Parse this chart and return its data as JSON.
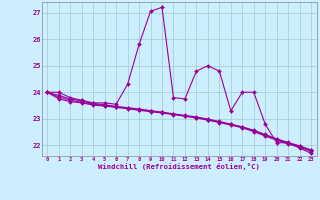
{
  "xlabel": "Windchill (Refroidissement éolien,°C)",
  "bg_color": "#cceeff",
  "line_color": "#990099",
  "grid_color": "#99cccc",
  "x_min": -0.5,
  "x_max": 23.5,
  "y_min": 21.6,
  "y_max": 27.4,
  "yticks": [
    22,
    23,
    24,
    25,
    26,
    27
  ],
  "xticks": [
    0,
    1,
    2,
    3,
    4,
    5,
    6,
    7,
    8,
    9,
    10,
    11,
    12,
    13,
    14,
    15,
    16,
    17,
    18,
    19,
    20,
    21,
    22,
    23
  ],
  "series1_x": [
    0,
    1,
    2,
    3,
    4,
    5,
    6,
    7,
    8,
    9,
    10,
    11,
    12,
    13,
    14,
    15,
    16,
    17,
    18,
    19,
    20,
    21,
    22,
    23
  ],
  "series1_y": [
    24.0,
    24.0,
    23.8,
    23.7,
    23.6,
    23.6,
    23.55,
    24.3,
    25.8,
    27.05,
    27.2,
    23.8,
    23.75,
    24.8,
    25.0,
    24.8,
    23.3,
    24.0,
    24.0,
    22.8,
    22.1,
    22.1,
    21.9,
    21.7
  ],
  "series2_x": [
    0,
    1,
    2,
    3,
    4,
    5,
    6,
    7,
    8,
    9,
    10,
    11,
    12,
    13,
    14,
    15,
    16,
    17,
    18,
    19,
    20,
    21,
    22,
    23
  ],
  "series2_y": [
    24.0,
    23.75,
    23.65,
    23.6,
    23.52,
    23.48,
    23.43,
    23.38,
    23.32,
    23.27,
    23.22,
    23.16,
    23.1,
    23.03,
    22.95,
    22.86,
    22.77,
    22.66,
    22.52,
    22.35,
    22.2,
    22.05,
    21.93,
    21.78
  ],
  "series3_x": [
    0,
    1,
    2,
    3,
    4,
    5,
    6,
    7,
    8,
    9,
    10,
    11,
    12,
    13,
    14,
    15,
    16,
    17,
    18,
    19,
    20,
    21,
    22,
    23
  ],
  "series3_y": [
    24.0,
    23.82,
    23.7,
    23.62,
    23.55,
    23.5,
    23.45,
    23.4,
    23.35,
    23.29,
    23.24,
    23.17,
    23.11,
    23.05,
    22.97,
    22.88,
    22.79,
    22.68,
    22.55,
    22.38,
    22.22,
    22.08,
    21.97,
    21.82
  ],
  "series4_x": [
    0,
    1,
    2,
    3,
    4,
    5,
    6,
    7,
    8,
    9,
    10,
    11,
    12,
    13,
    14,
    15,
    16,
    17,
    18,
    19,
    20,
    21,
    22,
    23
  ],
  "series4_y": [
    24.0,
    23.88,
    23.75,
    23.67,
    23.58,
    23.53,
    23.47,
    23.42,
    23.37,
    23.31,
    23.25,
    23.19,
    23.13,
    23.07,
    22.99,
    22.9,
    22.8,
    22.7,
    22.57,
    22.41,
    22.25,
    22.11,
    21.98,
    21.83
  ]
}
